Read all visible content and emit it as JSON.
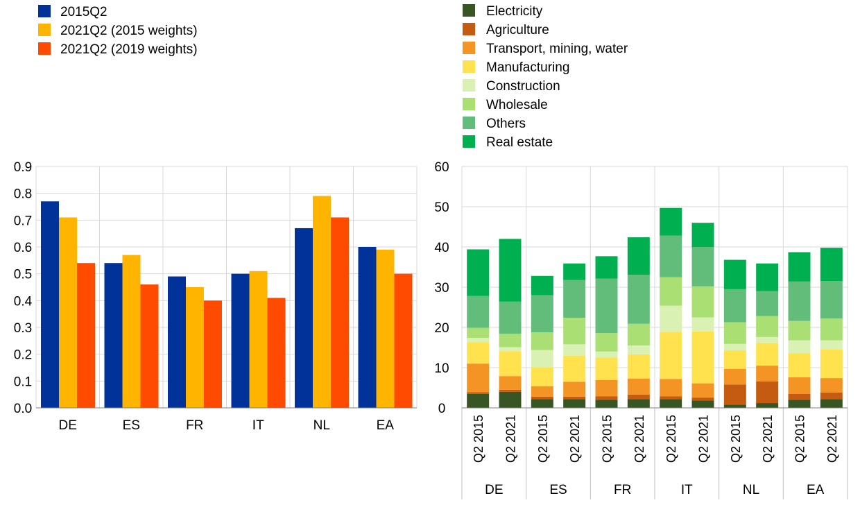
{
  "chart_data": [
    {
      "type": "bar",
      "categories": [
        "DE",
        "ES",
        "FR",
        "IT",
        "NL",
        "EA"
      ],
      "series": [
        {
          "name": "2015Q2",
          "color": "#003299",
          "values": [
            0.77,
            0.54,
            0.49,
            0.5,
            0.67,
            0.6
          ]
        },
        {
          "name": "2021Q2 (2015 weights)",
          "color": "#FFB400",
          "values": [
            0.71,
            0.57,
            0.45,
            0.51,
            0.79,
            0.59
          ]
        },
        {
          "name": "2021Q2 (2019 weights)",
          "color": "#FF4B00",
          "values": [
            0.54,
            0.46,
            0.4,
            0.41,
            0.71,
            0.5
          ]
        }
      ],
      "ylim": [
        0,
        0.9
      ],
      "yticks": [
        "0.0",
        "0.1",
        "0.2",
        "0.3",
        "0.4",
        "0.5",
        "0.6",
        "0.7",
        "0.8",
        "0.9"
      ],
      "grid": true,
      "legend": "top-left"
    },
    {
      "type": "bar",
      "stacked": true,
      "groups": [
        "DE",
        "ES",
        "FR",
        "IT",
        "NL",
        "EA"
      ],
      "periods": [
        "Q2 2015",
        "Q2 2021"
      ],
      "series": [
        {
          "name": "Electricity",
          "color": "#375623",
          "values": [
            3.5,
            4.0,
            2.2,
            2.2,
            2.0,
            2.2,
            2.2,
            1.8,
            0.8,
            1.2,
            2.0,
            2.2
          ]
        },
        {
          "name": "Agriculture",
          "color": "#C55A11",
          "values": [
            0.4,
            0.5,
            0.6,
            0.6,
            0.9,
            1.1,
            0.7,
            0.7,
            5.0,
            5.4,
            1.5,
            1.6
          ]
        },
        {
          "name": "Transport, mining, water",
          "color": "#F39424",
          "values": [
            7.1,
            3.4,
            2.6,
            3.7,
            4.0,
            4.0,
            4.3,
            3.6,
            3.9,
            3.9,
            4.1,
            3.6
          ]
        },
        {
          "name": "Manufacturing",
          "color": "#FFE24D",
          "values": [
            5.3,
            6.2,
            4.6,
            6.5,
            5.6,
            6.0,
            11.7,
            12.9,
            4.6,
            5.6,
            6.0,
            7.1
          ]
        },
        {
          "name": "Construction",
          "color": "#D9F2B3",
          "values": [
            1.1,
            1.0,
            4.4,
            2.8,
            1.5,
            2.2,
            6.5,
            3.5,
            1.6,
            1.5,
            3.2,
            2.3
          ]
        },
        {
          "name": "Wholesale",
          "color": "#A9DF73",
          "values": [
            2.5,
            3.3,
            4.4,
            6.6,
            4.6,
            5.4,
            7.1,
            7.7,
            5.4,
            5.2,
            4.8,
            5.4
          ]
        },
        {
          "name": "Others",
          "color": "#63BD7A",
          "values": [
            7.9,
            8.0,
            9.2,
            9.4,
            13.5,
            12.2,
            10.3,
            9.8,
            8.2,
            6.2,
            9.8,
            9.3
          ]
        },
        {
          "name": "Real estate",
          "color": "#00B050",
          "values": [
            11.6,
            15.6,
            4.8,
            4.1,
            5.6,
            9.3,
            6.9,
            6.0,
            7.3,
            6.9,
            7.3,
            8.3
          ]
        }
      ],
      "ylim": [
        0,
        60
      ],
      "yticks": [
        "0",
        "10",
        "20",
        "30",
        "40",
        "50",
        "60"
      ],
      "grid": true,
      "legend": "top-left"
    }
  ]
}
